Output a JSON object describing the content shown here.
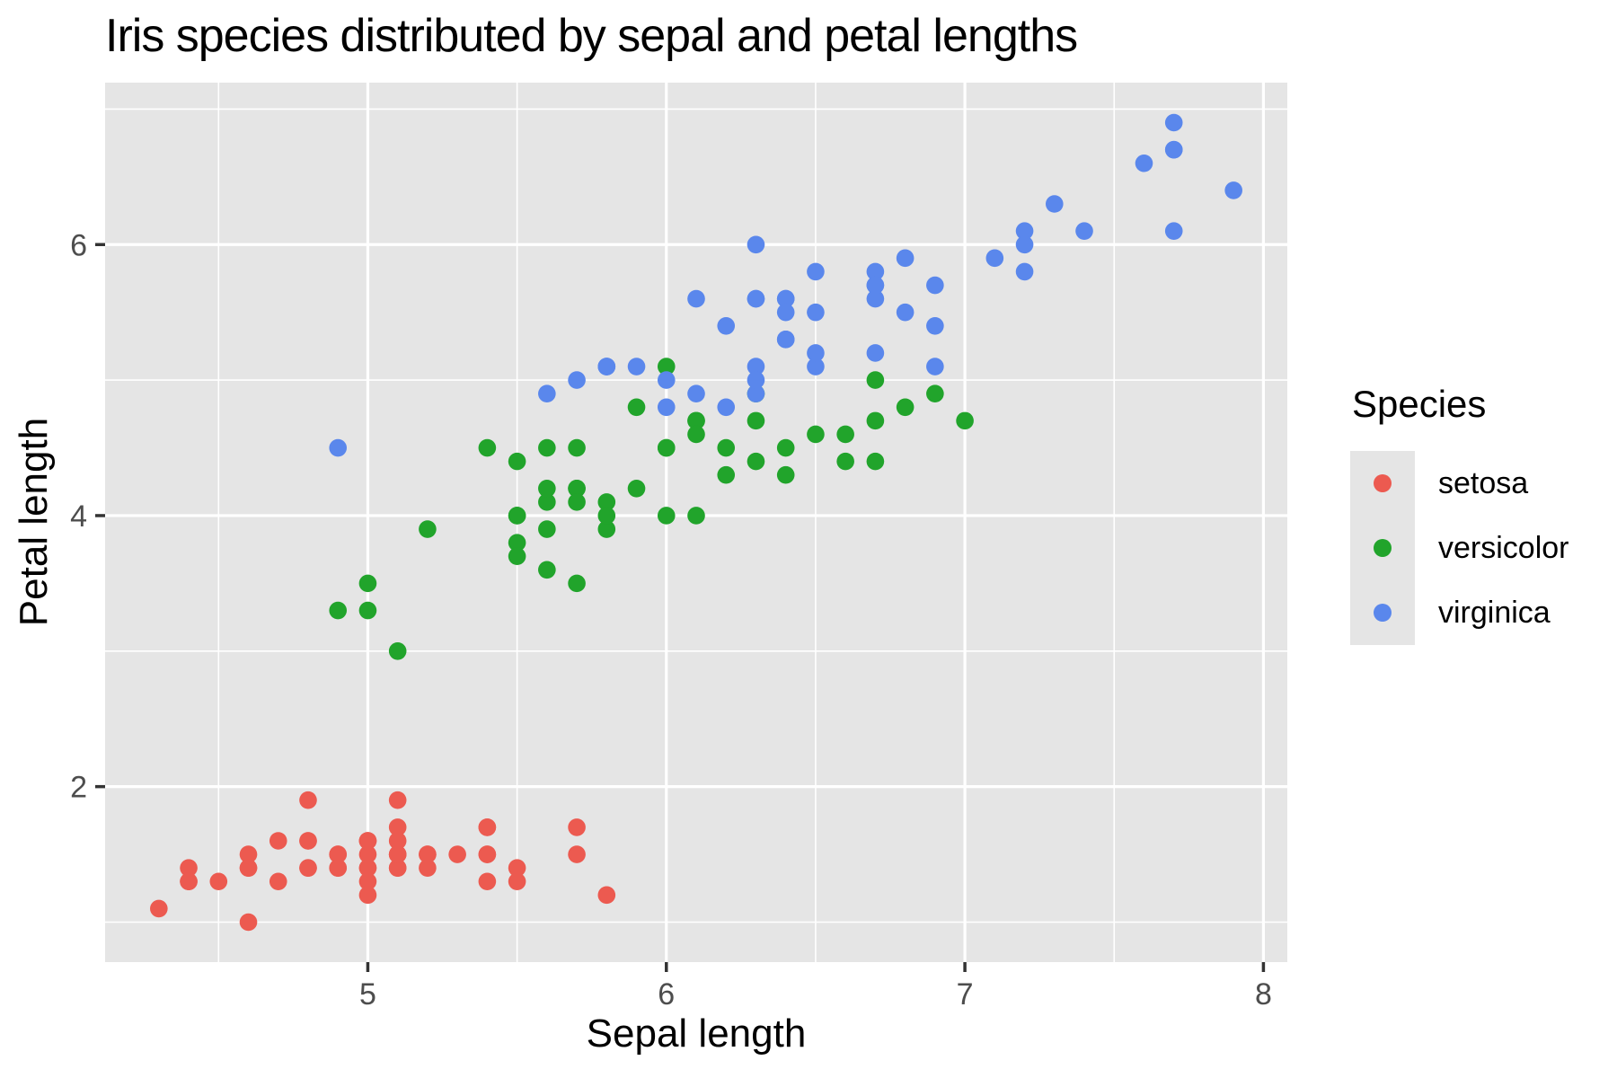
{
  "chart_data": {
    "type": "scatter",
    "title": "Iris species distributed by sepal and petal lengths",
    "xlabel": "Sepal length",
    "ylabel": "Petal length",
    "legend_title": "Species",
    "legend_position": "right",
    "grid": true,
    "xlim": [
      4.12,
      8.08
    ],
    "ylim": [
      0.705,
      7.195
    ],
    "x_ticks": [
      5,
      6,
      7,
      8
    ],
    "y_ticks": [
      2,
      4,
      6
    ],
    "x_minor": [
      4.5,
      5.5,
      6.5,
      7.5
    ],
    "y_minor": [
      1,
      3,
      5,
      7
    ],
    "colors": {
      "panel_bg": "#E5E5E5",
      "grid": "#FFFFFF",
      "tick_mark": "#333333",
      "tick_label": "#4D4D4D",
      "text": "#000000"
    },
    "series": [
      {
        "name": "setosa",
        "color": "#EC5A50",
        "points": [
          [
            5.1,
            1.4
          ],
          [
            4.9,
            1.4
          ],
          [
            4.7,
            1.3
          ],
          [
            4.6,
            1.5
          ],
          [
            5.0,
            1.4
          ],
          [
            5.4,
            1.7
          ],
          [
            4.6,
            1.4
          ],
          [
            5.0,
            1.5
          ],
          [
            4.4,
            1.4
          ],
          [
            4.9,
            1.5
          ],
          [
            5.4,
            1.5
          ],
          [
            4.8,
            1.6
          ],
          [
            4.8,
            1.4
          ],
          [
            4.3,
            1.1
          ],
          [
            5.8,
            1.2
          ],
          [
            5.7,
            1.5
          ],
          [
            5.4,
            1.3
          ],
          [
            5.1,
            1.4
          ],
          [
            5.7,
            1.7
          ],
          [
            5.1,
            1.5
          ],
          [
            5.4,
            1.7
          ],
          [
            5.1,
            1.5
          ],
          [
            4.6,
            1.0
          ],
          [
            5.1,
            1.7
          ],
          [
            4.8,
            1.9
          ],
          [
            5.0,
            1.6
          ],
          [
            5.0,
            1.6
          ],
          [
            5.2,
            1.5
          ],
          [
            5.2,
            1.4
          ],
          [
            4.7,
            1.6
          ],
          [
            4.8,
            1.6
          ],
          [
            5.4,
            1.5
          ],
          [
            5.2,
            1.5
          ],
          [
            5.5,
            1.4
          ],
          [
            4.9,
            1.5
          ],
          [
            5.0,
            1.2
          ],
          [
            5.5,
            1.3
          ],
          [
            4.9,
            1.4
          ],
          [
            4.4,
            1.3
          ],
          [
            5.1,
            1.5
          ],
          [
            5.0,
            1.3
          ],
          [
            4.5,
            1.3
          ],
          [
            4.4,
            1.3
          ],
          [
            5.0,
            1.6
          ],
          [
            5.1,
            1.9
          ],
          [
            4.8,
            1.4
          ],
          [
            5.1,
            1.6
          ],
          [
            4.6,
            1.4
          ],
          [
            5.3,
            1.5
          ],
          [
            5.0,
            1.4
          ]
        ]
      },
      {
        "name": "versicolor",
        "color": "#21A42B",
        "points": [
          [
            7.0,
            4.7
          ],
          [
            6.4,
            4.5
          ],
          [
            6.9,
            4.9
          ],
          [
            5.5,
            4.0
          ],
          [
            6.5,
            4.6
          ],
          [
            5.7,
            4.5
          ],
          [
            6.3,
            4.7
          ],
          [
            4.9,
            3.3
          ],
          [
            6.6,
            4.6
          ],
          [
            5.2,
            3.9
          ],
          [
            5.0,
            3.5
          ],
          [
            5.9,
            4.2
          ],
          [
            6.0,
            4.0
          ],
          [
            6.1,
            4.7
          ],
          [
            5.6,
            3.6
          ],
          [
            6.7,
            4.4
          ],
          [
            5.6,
            4.5
          ],
          [
            5.8,
            4.1
          ],
          [
            6.2,
            4.5
          ],
          [
            5.6,
            3.9
          ],
          [
            5.9,
            4.8
          ],
          [
            6.1,
            4.0
          ],
          [
            6.3,
            4.9
          ],
          [
            6.1,
            4.7
          ],
          [
            6.4,
            4.3
          ],
          [
            6.6,
            4.4
          ],
          [
            6.8,
            4.8
          ],
          [
            6.7,
            5.0
          ],
          [
            6.0,
            4.5
          ],
          [
            5.7,
            3.5
          ],
          [
            5.5,
            3.8
          ],
          [
            5.5,
            3.7
          ],
          [
            5.8,
            3.9
          ],
          [
            6.0,
            5.1
          ],
          [
            5.4,
            4.5
          ],
          [
            6.0,
            4.5
          ],
          [
            6.7,
            4.7
          ],
          [
            6.3,
            4.4
          ],
          [
            5.6,
            4.1
          ],
          [
            5.5,
            4.0
          ],
          [
            5.5,
            4.4
          ],
          [
            6.1,
            4.6
          ],
          [
            5.8,
            4.0
          ],
          [
            5.0,
            3.3
          ],
          [
            5.6,
            4.2
          ],
          [
            5.7,
            4.2
          ],
          [
            5.7,
            4.2
          ],
          [
            6.2,
            4.3
          ],
          [
            5.1,
            3.0
          ],
          [
            5.7,
            4.1
          ]
        ]
      },
      {
        "name": "virginica",
        "color": "#5A87EC",
        "points": [
          [
            6.3,
            6.0
          ],
          [
            5.8,
            5.1
          ],
          [
            7.1,
            5.9
          ],
          [
            6.3,
            5.6
          ],
          [
            6.5,
            5.8
          ],
          [
            7.6,
            6.6
          ],
          [
            4.9,
            4.5
          ],
          [
            7.3,
            6.3
          ],
          [
            6.7,
            5.8
          ],
          [
            7.2,
            6.1
          ],
          [
            6.5,
            5.1
          ],
          [
            6.4,
            5.3
          ],
          [
            6.8,
            5.5
          ],
          [
            5.7,
            5.0
          ],
          [
            5.8,
            5.1
          ],
          [
            6.4,
            5.3
          ],
          [
            6.5,
            5.5
          ],
          [
            7.7,
            6.7
          ],
          [
            7.7,
            6.9
          ],
          [
            6.0,
            5.0
          ],
          [
            6.9,
            5.7
          ],
          [
            5.6,
            4.9
          ],
          [
            7.7,
            6.7
          ],
          [
            6.3,
            4.9
          ],
          [
            6.7,
            5.7
          ],
          [
            7.2,
            6.0
          ],
          [
            6.2,
            4.8
          ],
          [
            6.1,
            4.9
          ],
          [
            6.4,
            5.6
          ],
          [
            7.2,
            5.8
          ],
          [
            7.4,
            6.1
          ],
          [
            7.9,
            6.4
          ],
          [
            6.4,
            5.6
          ],
          [
            6.3,
            5.1
          ],
          [
            6.1,
            5.6
          ],
          [
            7.7,
            6.1
          ],
          [
            6.3,
            5.6
          ],
          [
            6.4,
            5.5
          ],
          [
            6.0,
            4.8
          ],
          [
            6.9,
            5.4
          ],
          [
            6.7,
            5.6
          ],
          [
            6.9,
            5.1
          ],
          [
            5.8,
            5.1
          ],
          [
            6.8,
            5.9
          ],
          [
            6.7,
            5.7
          ],
          [
            6.7,
            5.2
          ],
          [
            6.3,
            5.0
          ],
          [
            6.5,
            5.2
          ],
          [
            6.2,
            5.4
          ],
          [
            5.9,
            5.1
          ]
        ]
      }
    ]
  }
}
